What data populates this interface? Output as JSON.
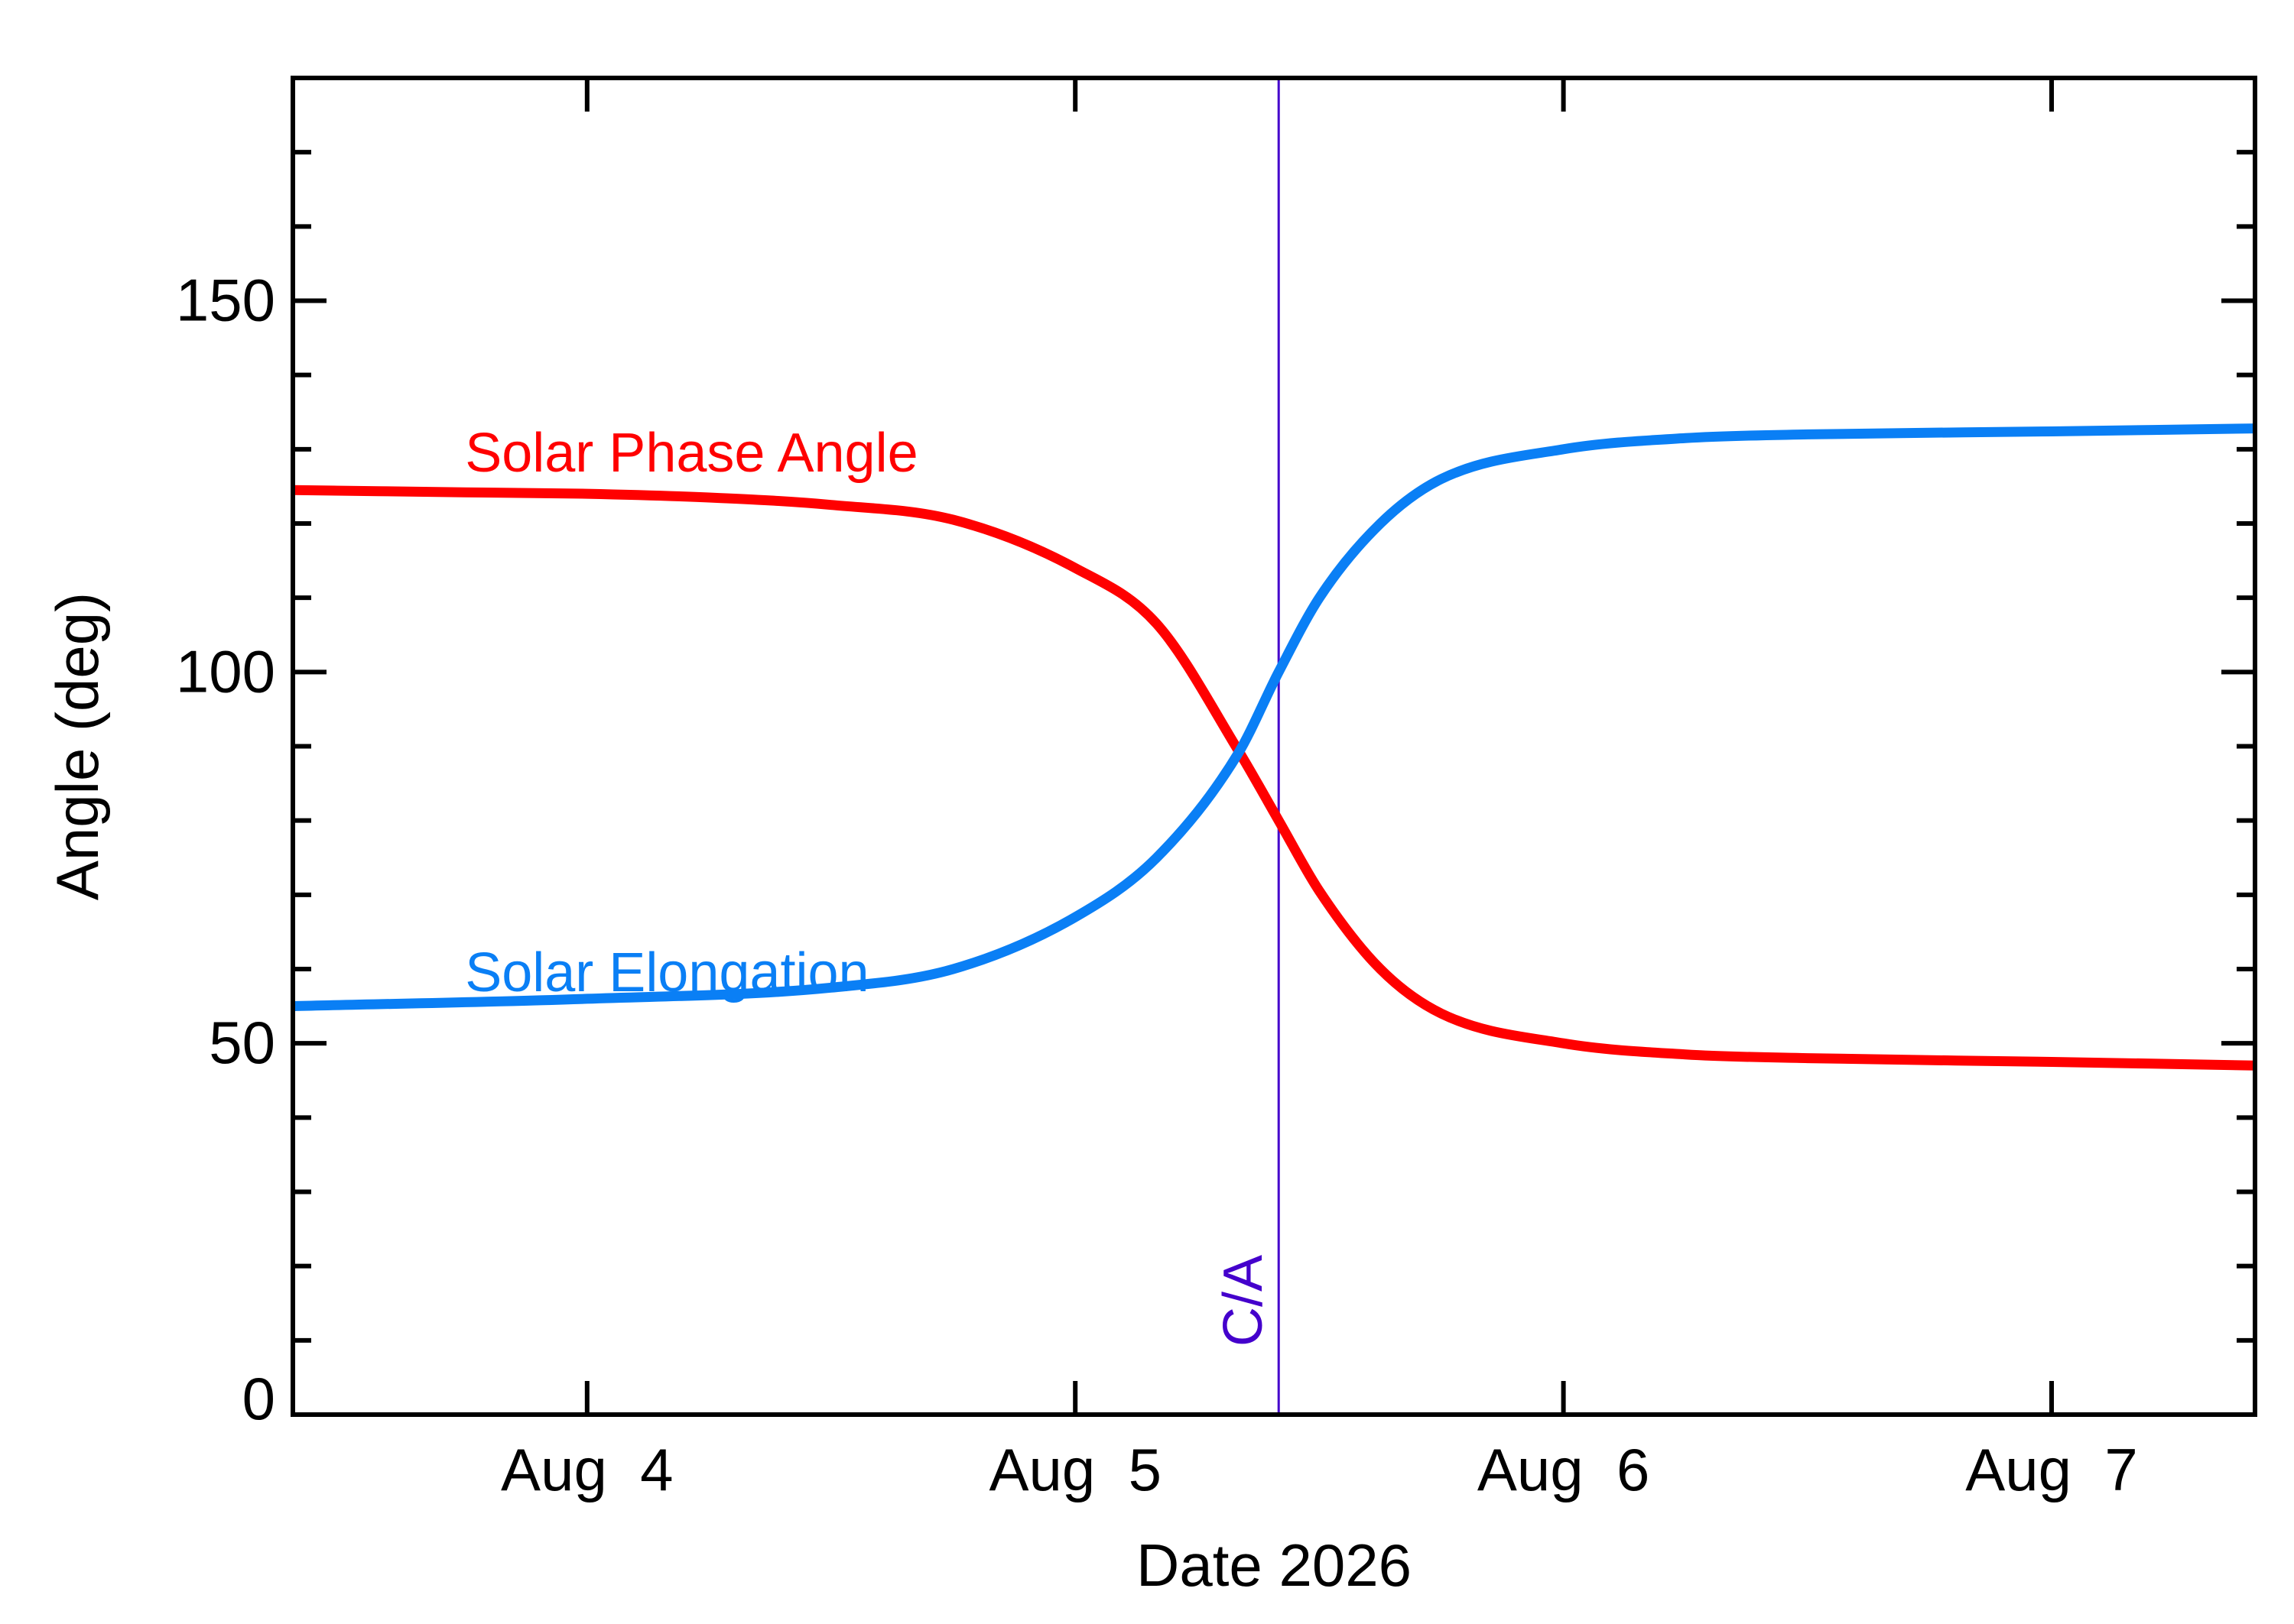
{
  "chart_data": {
    "type": "line",
    "title": "",
    "xlabel": "Date 2026",
    "ylabel": "Angle (deg)",
    "xlim": [
      "2026-08-03 09:32",
      "2026-08-07 10:00"
    ],
    "ylim": [
      0,
      180
    ],
    "x_ticks": [
      {
        "date": "2026-08-04",
        "label": "Aug  4"
      },
      {
        "date": "2026-08-05",
        "label": "Aug  5"
      },
      {
        "date": "2026-08-06",
        "label": "Aug  6"
      },
      {
        "date": "2026-08-07",
        "label": "Aug  7"
      }
    ],
    "y_ticks": [
      {
        "value": 0,
        "label": "0"
      },
      {
        "value": 50,
        "label": "50"
      },
      {
        "value": 100,
        "label": "100"
      },
      {
        "value": 150,
        "label": "150"
      }
    ],
    "grid": false,
    "legend": "none",
    "series": [
      {
        "name": "Solar Phase Angle",
        "color": "#ff0000",
        "points": [
          {
            "x": "2026-08-03 09:32",
            "y": 124.5
          },
          {
            "x": "2026-08-03 18:00",
            "y": 124.2
          },
          {
            "x": "2026-08-04 00:00",
            "y": 124.0
          },
          {
            "x": "2026-08-04 06:00",
            "y": 123.5
          },
          {
            "x": "2026-08-04 12:00",
            "y": 122.5
          },
          {
            "x": "2026-08-04 18:00",
            "y": 120.5
          },
          {
            "x": "2026-08-05 00:00",
            "y": 114.0
          },
          {
            "x": "2026-08-05 04:00",
            "y": 106.5
          },
          {
            "x": "2026-08-05 08:00",
            "y": 89.5
          },
          {
            "x": "2026-08-05 10:00",
            "y": 80.0
          },
          {
            "x": "2026-08-05 12:00",
            "y": 70.5
          },
          {
            "x": "2026-08-05 15:00",
            "y": 60.0
          },
          {
            "x": "2026-08-05 18:00",
            "y": 54.0
          },
          {
            "x": "2026-08-06 00:00",
            "y": 50.0
          },
          {
            "x": "2026-08-06 06:00",
            "y": 48.5
          },
          {
            "x": "2026-08-06 12:00",
            "y": 48.0
          },
          {
            "x": "2026-08-07 00:00",
            "y": 47.5
          },
          {
            "x": "2026-08-07 10:00",
            "y": 47.0
          }
        ]
      },
      {
        "name": "Solar Elongation",
        "color": "#0a7ff5",
        "points": [
          {
            "x": "2026-08-03 09:32",
            "y": 55.0
          },
          {
            "x": "2026-08-04 00:00",
            "y": 56.0
          },
          {
            "x": "2026-08-04 12:00",
            "y": 57.5
          },
          {
            "x": "2026-08-04 18:00",
            "y": 60.0
          },
          {
            "x": "2026-08-05 00:00",
            "y": 67.0
          },
          {
            "x": "2026-08-05 04:00",
            "y": 75.0
          },
          {
            "x": "2026-08-05 08:00",
            "y": 89.0
          },
          {
            "x": "2026-08-05 10:00",
            "y": 100.0
          },
          {
            "x": "2026-08-05 12:00",
            "y": 110.0
          },
          {
            "x": "2026-08-05 15:00",
            "y": 120.0
          },
          {
            "x": "2026-08-05 18:00",
            "y": 126.0
          },
          {
            "x": "2026-08-06 00:00",
            "y": 130.0
          },
          {
            "x": "2026-08-06 06:00",
            "y": 131.5
          },
          {
            "x": "2026-08-06 12:00",
            "y": 132.0
          },
          {
            "x": "2026-08-07 00:00",
            "y": 132.4
          },
          {
            "x": "2026-08-07 10:00",
            "y": 132.8
          }
        ]
      }
    ],
    "annotations": [
      {
        "label": "C/A",
        "x": "2026-08-05 10:00",
        "color": "#4400cc"
      }
    ],
    "series_label_positions": [
      {
        "series": "Solar Phase Angle",
        "x": "2026-08-03 18:00",
        "y": 127
      },
      {
        "series": "Solar Elongation",
        "x": "2026-08-03 18:00",
        "y": 57
      }
    ]
  }
}
